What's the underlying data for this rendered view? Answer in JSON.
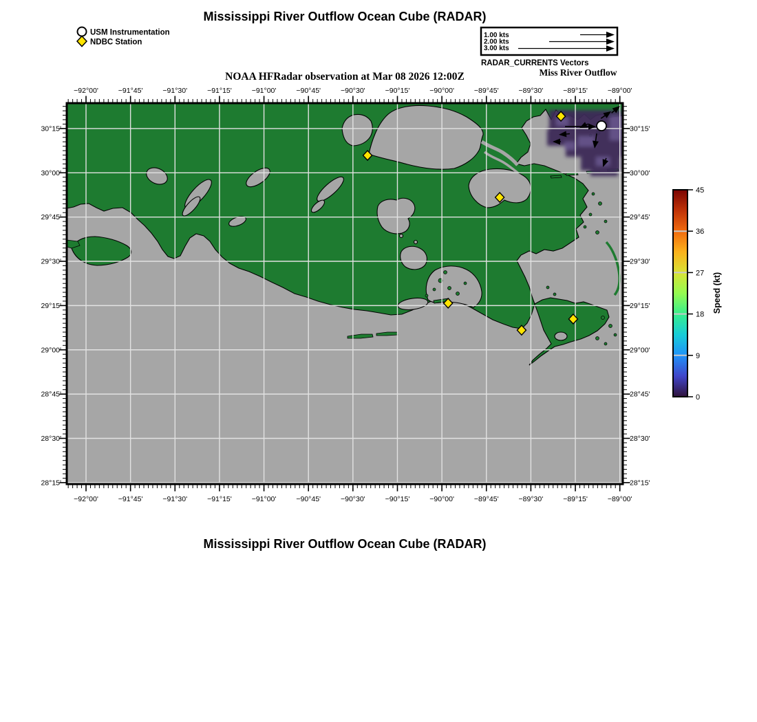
{
  "header": {
    "title": "Mississippi River Outflow Ocean Cube (RADAR)",
    "subtitle": "NOAA HFRadar observation at Mar 08 2026 12:00Z"
  },
  "legend": {
    "usm_label": "USM Instrumentation",
    "ndbc_label": "NDBC Station"
  },
  "vector_scale": {
    "rows": [
      {
        "label": "1.00 kts",
        "kts": 1.0
      },
      {
        "label": "2.00 kts",
        "kts": 2.0
      },
      {
        "label": "3.00 kts",
        "kts": 3.0
      }
    ],
    "caption": "RADAR_CURRENTS Vectors",
    "region_label": "Miss River Outflow"
  },
  "map": {
    "lon_ticks": [
      {
        "label": "−92°00'",
        "deg": -92.0
      },
      {
        "label": "−91°45'",
        "deg": -91.75
      },
      {
        "label": "−91°30'",
        "deg": -91.5
      },
      {
        "label": "−91°15'",
        "deg": -91.25
      },
      {
        "label": "−91°00'",
        "deg": -91.0
      },
      {
        "label": "−90°45'",
        "deg": -90.75
      },
      {
        "label": "−90°30'",
        "deg": -90.5
      },
      {
        "label": "−90°15'",
        "deg": -90.25
      },
      {
        "label": "−90°00'",
        "deg": -90.0
      },
      {
        "label": "−89°45'",
        "deg": -89.75
      },
      {
        "label": "−89°30'",
        "deg": -89.5
      },
      {
        "label": "−89°15'",
        "deg": -89.25
      },
      {
        "label": "−89°00'",
        "deg": -89.0
      }
    ],
    "lat_ticks": [
      {
        "label": "30°15'",
        "deg": 30.25
      },
      {
        "label": "30°00'",
        "deg": 30.0
      },
      {
        "label": "29°45'",
        "deg": 29.75
      },
      {
        "label": "29°30'",
        "deg": 29.5
      },
      {
        "label": "29°15'",
        "deg": 29.25
      },
      {
        "label": "29°00'",
        "deg": 29.0
      },
      {
        "label": "28°45'",
        "deg": 28.75
      },
      {
        "label": "28°30'",
        "deg": 28.5
      },
      {
        "label": "28°15'",
        "deg": 28.25
      }
    ],
    "lon_range": [
      -92.1083,
      -88.9833
    ],
    "lat_range": [
      28.2417,
      30.3933
    ],
    "stations": [
      {
        "type": "ndbc",
        "lon": -90.418,
        "lat": 30.098
      },
      {
        "type": "ndbc",
        "lon": -89.331,
        "lat": 30.319
      },
      {
        "type": "ndbc",
        "lon": -89.675,
        "lat": 29.861
      },
      {
        "type": "ndbc",
        "lon": -89.965,
        "lat": 29.263
      },
      {
        "type": "ndbc",
        "lon": -89.552,
        "lat": 29.111
      },
      {
        "type": "ndbc",
        "lon": -89.262,
        "lat": 29.174
      },
      {
        "type": "usm",
        "lon": -89.103,
        "lat": 30.265
      }
    ],
    "vectors": [
      {
        "lon": -89.134,
        "lat": 30.261,
        "angle": 0,
        "len": 45
      },
      {
        "lon": -89.343,
        "lat": 30.215,
        "angle": 185,
        "len": 16
      },
      {
        "lon": -89.142,
        "lat": 30.137,
        "angle": 262,
        "len": 22
      },
      {
        "lon": -89.049,
        "lat": 30.347,
        "angle": 35,
        "len": 18
      },
      {
        "lon": -88.999,
        "lat": 30.378,
        "angle": 40,
        "len": 16
      },
      {
        "lon": -89.227,
        "lat": 30.253,
        "angle": 205,
        "len": 14
      },
      {
        "lon": -89.095,
        "lat": 30.032,
        "angle": 250,
        "len": 14
      },
      {
        "lon": -89.378,
        "lat": 30.176,
        "angle": 180,
        "len": 12
      }
    ],
    "colors": {
      "land": "#1e7b30",
      "water": "#a6a6a6",
      "grid": "#e2e2e2",
      "radar_low_dark": "#3c2a58",
      "radar_low_light": "#6c5a96",
      "station_yellow": "#ffe400"
    }
  },
  "colorbar": {
    "label": "Speed (kt)",
    "min": 0,
    "max": 45,
    "ticks": [
      0,
      9,
      18,
      27,
      36,
      45
    ],
    "gradient": [
      {
        "t": 0.0,
        "c": "#30123b"
      },
      {
        "t": 0.1,
        "c": "#4146cb"
      },
      {
        "t": 0.2,
        "c": "#2092f8"
      },
      {
        "t": 0.3,
        "c": "#18cdd8"
      },
      {
        "t": 0.4,
        "c": "#38ef8d"
      },
      {
        "t": 0.5,
        "c": "#95fb51"
      },
      {
        "t": 0.6,
        "c": "#d9e235"
      },
      {
        "t": 0.7,
        "c": "#fbb21c"
      },
      {
        "t": 0.8,
        "c": "#f06a0e"
      },
      {
        "t": 0.9,
        "c": "#c03308"
      },
      {
        "t": 1.0,
        "c": "#7a0403"
      }
    ]
  },
  "footer": {
    "title": "Mississippi River Outflow Ocean Cube (RADAR)"
  }
}
